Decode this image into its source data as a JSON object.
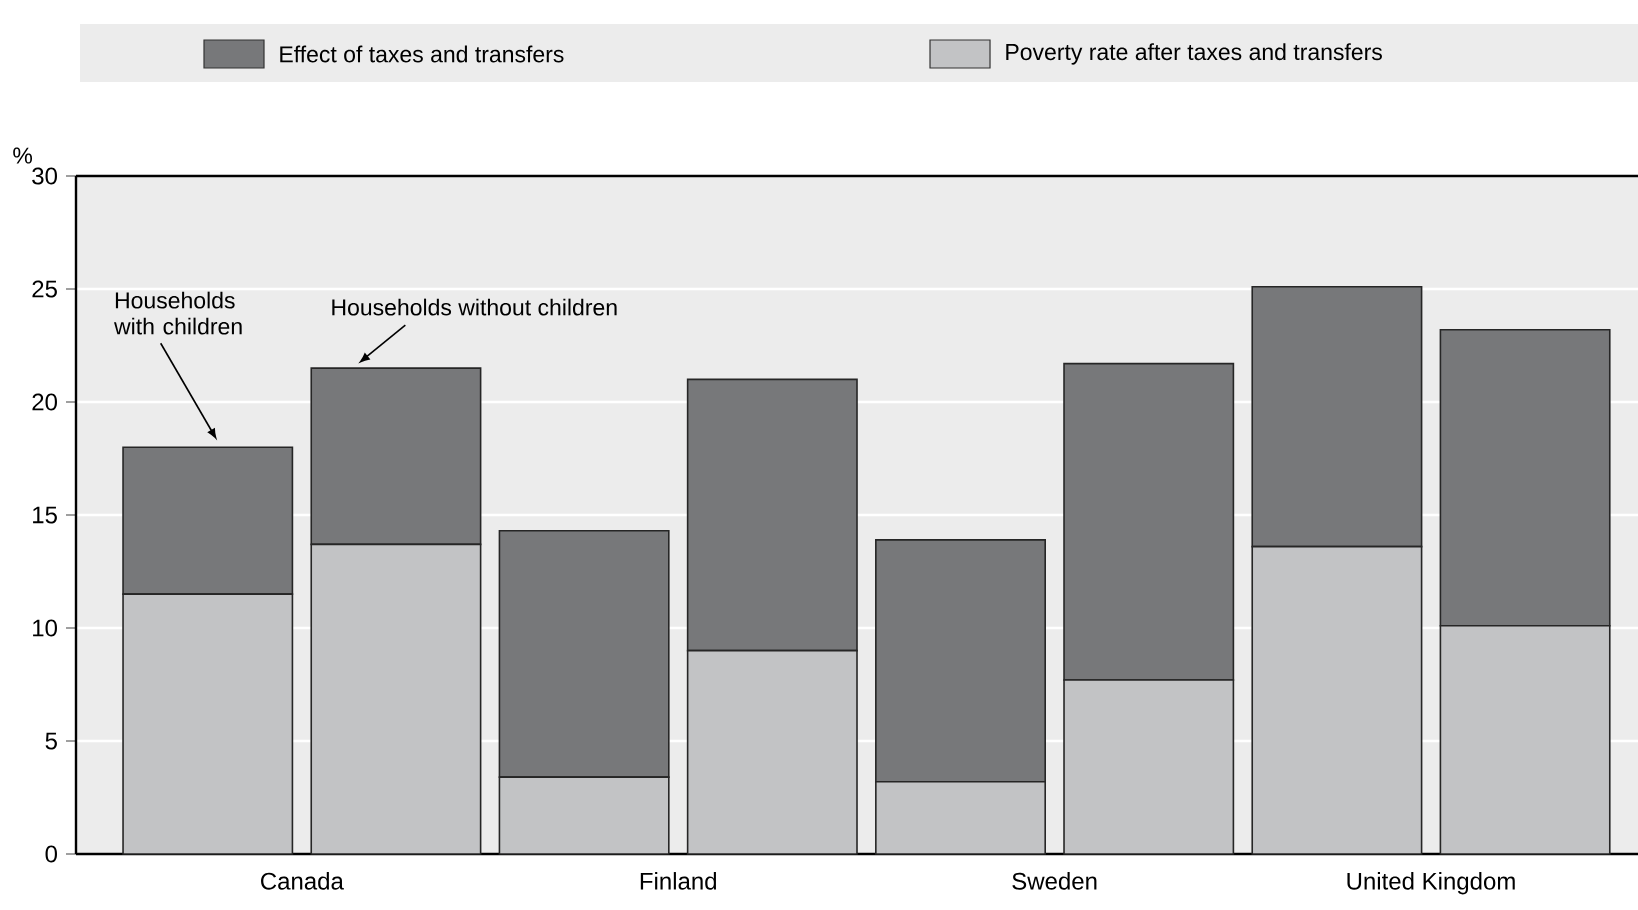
{
  "chart_data": {
    "type": "bar",
    "stacked": true,
    "ylabel": "%",
    "categories": [
      "Canada",
      null,
      "Finland",
      null,
      "Sweden",
      null,
      "United Kingdom",
      null
    ],
    "series": [
      {
        "name": "Poverty rate after taxes and transfers",
        "color": "#c2c3c5",
        "values": [
          11.5,
          13.7,
          3.4,
          9.0,
          3.2,
          7.7,
          13.6,
          10.1
        ]
      },
      {
        "name": "Effect of taxes and transfers",
        "color": "#77787a",
        "values": [
          6.5,
          7.8,
          10.9,
          12.0,
          10.7,
          14.0,
          11.5,
          13.1
        ]
      }
    ],
    "annotations": [
      "Households with children",
      {
        "text": "Households without children",
        "y": 21.5
      }
    ],
    "ylim": [
      0,
      30
    ],
    "yticks": [
      0,
      5,
      10,
      15,
      20,
      25,
      30
    ],
    "grid": "y",
    "legend": "top"
  }
}
